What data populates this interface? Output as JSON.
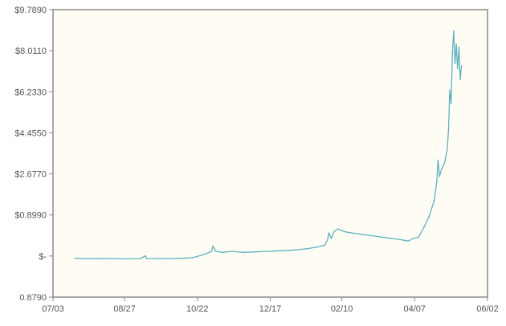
{
  "chart_data": {
    "type": "line",
    "title": "",
    "xlabel": "",
    "ylabel": "",
    "grid": true,
    "legend": "none",
    "y_ticks": [
      "$9.7890",
      "$8.0110",
      "$6.2330",
      "$4.4550",
      "$2.6770",
      "$0.8990",
      "$-",
      "0.8790"
    ],
    "x_ticks": [
      "07/03",
      "08/27",
      "10/22",
      "12/17",
      "02/10",
      "04/07",
      "06/02"
    ],
    "x_range": [
      "07/03",
      "06/02"
    ],
    "y_range": [
      -0.879,
      9.789
    ],
    "series": [
      {
        "color": "#5bb3c3",
        "points": [
          [
            "07/20",
            0.56
          ],
          [
            "07/25",
            0.55
          ],
          [
            "08/02",
            0.55
          ],
          [
            "08/10",
            0.55
          ],
          [
            "08/20",
            0.55
          ],
          [
            "08/30",
            0.54
          ],
          [
            "09/08",
            0.55
          ],
          [
            "09/12",
            0.65
          ],
          [
            "09/13",
            0.55
          ],
          [
            "09/20",
            0.55
          ],
          [
            "10/01",
            0.55
          ],
          [
            "10/10",
            0.56
          ],
          [
            "10/18",
            0.58
          ],
          [
            "10/22",
            0.63
          ],
          [
            "10/28",
            0.72
          ],
          [
            "11/02",
            0.82
          ],
          [
            "11/03",
            1.02
          ],
          [
            "11/05",
            0.82
          ],
          [
            "11/10",
            0.78
          ],
          [
            "11/18",
            0.82
          ],
          [
            "11/26",
            0.78
          ],
          [
            "12/05",
            0.8
          ],
          [
            "12/15",
            0.82
          ],
          [
            "12/25",
            0.84
          ],
          [
            "01/05",
            0.87
          ],
          [
            "01/15",
            0.92
          ],
          [
            "01/22",
            0.98
          ],
          [
            "01/28",
            1.05
          ],
          [
            "01/30",
            1.25
          ],
          [
            "01/31",
            1.5
          ],
          [
            "02/02",
            1.3
          ],
          [
            "02/04",
            1.55
          ],
          [
            "02/07",
            1.65
          ],
          [
            "02/12",
            1.55
          ],
          [
            "02/18",
            1.5
          ],
          [
            "02/25",
            1.45
          ],
          [
            "03/05",
            1.4
          ],
          [
            "03/12",
            1.35
          ],
          [
            "03/20",
            1.3
          ],
          [
            "03/28",
            1.25
          ],
          [
            "04/02",
            1.2
          ],
          [
            "04/06",
            1.3
          ],
          [
            "04/10",
            1.35
          ],
          [
            "04/14",
            1.7
          ],
          [
            "04/18",
            2.1
          ],
          [
            "04/22",
            2.7
          ],
          [
            "04/24",
            3.4
          ],
          [
            "04/25",
            4.2
          ],
          [
            "04/26",
            3.6
          ],
          [
            "04/28",
            3.9
          ],
          [
            "04/30",
            4.1
          ],
          [
            "05/02",
            4.6
          ],
          [
            "05/03",
            5.3
          ],
          [
            "05/04",
            6.8
          ],
          [
            "05/05",
            6.3
          ],
          [
            "05/06",
            8.2
          ],
          [
            "05/07",
            9.0
          ],
          [
            "05/08",
            7.8
          ],
          [
            "05/09",
            8.5
          ],
          [
            "05/10",
            7.6
          ],
          [
            "05/11",
            8.4
          ],
          [
            "05/12",
            7.2
          ],
          [
            "05/13",
            7.7
          ]
        ]
      }
    ]
  }
}
